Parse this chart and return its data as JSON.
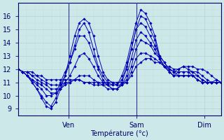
{
  "bg_color": "#cce8e8",
  "line_color": "#0000bb",
  "marker_color": "#0000bb",
  "ylim": [
    8.7,
    16.7
  ],
  "xlim": [
    0,
    72
  ],
  "yticks": [
    9,
    10,
    11,
    12,
    13,
    14,
    15,
    16
  ],
  "xlabel": "Température (°c)",
  "xtick_positions": [
    18,
    42,
    66
  ],
  "xtick_labels": [
    "Ven",
    "Sam",
    "Dim"
  ],
  "vlines": [
    18,
    42
  ],
  "series": [
    [
      12.0,
      11.8,
      11.5,
      11.0,
      10.5,
      9.8,
      9.2,
      9.0,
      9.5,
      10.5,
      11.5,
      13.0,
      14.5,
      15.5,
      15.8,
      15.5,
      14.5,
      13.0,
      11.8,
      11.2,
      11.0,
      10.8,
      11.5,
      12.5,
      14.0,
      15.5,
      16.5,
      16.2,
      15.5,
      14.5,
      13.0,
      12.5,
      12.0,
      11.8,
      12.0,
      12.2,
      12.0,
      11.8,
      11.5,
      11.2,
      11.0,
      11.0,
      11.2,
      11.0
    ],
    [
      12.0,
      11.8,
      11.5,
      11.0,
      10.5,
      10.0,
      9.5,
      9.2,
      9.8,
      10.8,
      11.5,
      12.5,
      13.8,
      15.0,
      15.5,
      14.8,
      13.5,
      12.2,
      11.5,
      11.0,
      10.8,
      10.8,
      11.2,
      12.2,
      13.5,
      15.0,
      16.0,
      15.8,
      15.0,
      14.2,
      12.8,
      12.2,
      11.8,
      11.5,
      11.8,
      11.8,
      11.8,
      11.5,
      11.2,
      11.0,
      11.0,
      11.0,
      11.0,
      11.0
    ],
    [
      12.0,
      11.8,
      11.5,
      11.2,
      10.8,
      10.5,
      10.0,
      10.0,
      10.2,
      11.0,
      11.8,
      12.5,
      13.5,
      14.5,
      14.5,
      14.0,
      13.0,
      12.0,
      11.2,
      10.8,
      10.5,
      10.5,
      11.0,
      12.0,
      13.5,
      15.0,
      15.5,
      15.2,
      14.5,
      13.8,
      13.0,
      12.5,
      12.0,
      11.8,
      11.5,
      11.5,
      11.5,
      11.5,
      11.2,
      11.0,
      11.0,
      11.0,
      11.0,
      11.0
    ],
    [
      12.0,
      11.8,
      11.5,
      11.2,
      11.0,
      10.8,
      10.5,
      10.2,
      10.2,
      10.5,
      11.0,
      11.5,
      12.2,
      13.0,
      13.2,
      12.8,
      12.2,
      11.5,
      11.0,
      10.8,
      10.5,
      10.5,
      10.8,
      11.5,
      12.8,
      14.2,
      14.8,
      14.5,
      14.0,
      13.5,
      12.8,
      12.2,
      11.8,
      11.5,
      11.5,
      11.5,
      11.5,
      11.5,
      11.2,
      11.0,
      11.0,
      11.0,
      11.0,
      11.0
    ],
    [
      12.0,
      11.8,
      11.8,
      11.5,
      11.2,
      11.0,
      10.8,
      10.5,
      10.5,
      10.5,
      10.8,
      11.0,
      11.2,
      11.5,
      11.5,
      11.5,
      11.2,
      11.0,
      10.8,
      10.5,
      10.5,
      10.5,
      10.8,
      11.2,
      12.2,
      13.5,
      14.2,
      14.0,
      13.8,
      13.2,
      12.8,
      12.2,
      11.8,
      11.5,
      11.5,
      11.5,
      11.5,
      11.5,
      11.5,
      11.2,
      11.0,
      11.0,
      11.0,
      11.0
    ],
    [
      12.0,
      11.8,
      11.8,
      11.5,
      11.5,
      11.2,
      11.0,
      10.8,
      10.8,
      10.8,
      11.0,
      11.0,
      11.2,
      11.2,
      11.0,
      11.0,
      10.8,
      10.8,
      10.8,
      10.8,
      10.8,
      10.8,
      10.8,
      11.0,
      11.8,
      12.8,
      13.2,
      13.2,
      13.0,
      12.8,
      12.5,
      12.2,
      12.0,
      11.8,
      11.8,
      11.8,
      11.8,
      11.8,
      11.8,
      11.5,
      11.2,
      11.0,
      11.0,
      11.0
    ],
    [
      12.0,
      11.8,
      11.8,
      11.8,
      11.5,
      11.5,
      11.2,
      11.2,
      11.2,
      11.2,
      11.2,
      11.2,
      11.2,
      11.2,
      11.0,
      11.0,
      11.0,
      11.0,
      11.0,
      11.0,
      11.0,
      11.0,
      11.0,
      11.0,
      11.5,
      12.2,
      12.5,
      12.8,
      12.8,
      12.5,
      12.5,
      12.2,
      12.2,
      12.0,
      12.0,
      12.2,
      12.2,
      12.2,
      12.0,
      12.0,
      11.8,
      11.5,
      11.2,
      11.0
    ]
  ]
}
